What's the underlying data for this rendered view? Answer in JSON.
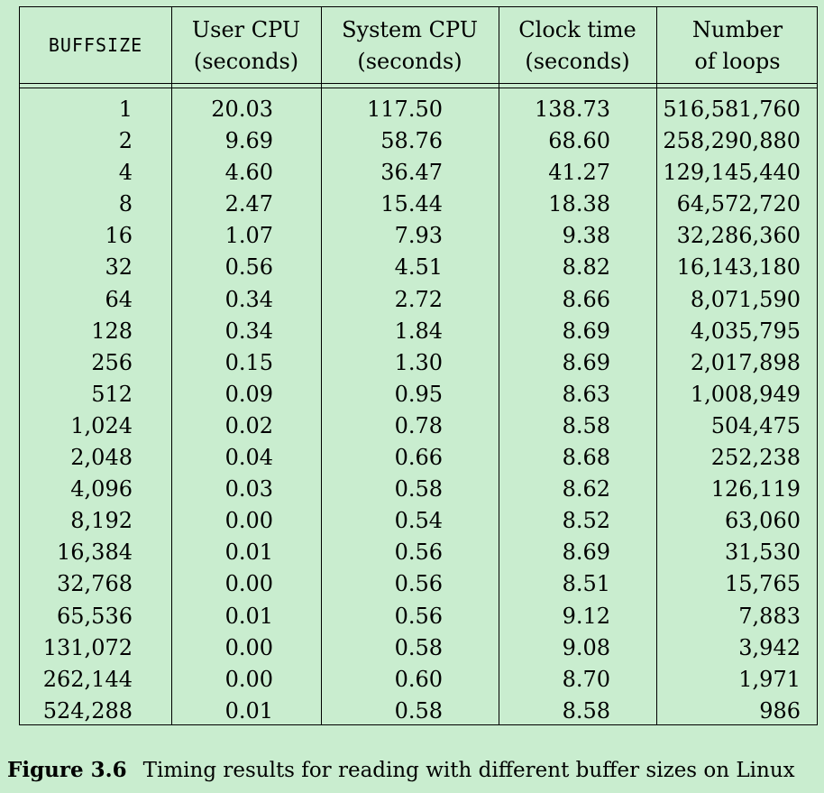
{
  "table": {
    "headers": [
      {
        "line1": "BUFFSIZE",
        "line2": ""
      },
      {
        "line1": "User CPU",
        "line2": "(seconds)"
      },
      {
        "line1": "System CPU",
        "line2": "(seconds)"
      },
      {
        "line1": "Clock time",
        "line2": "(seconds)"
      },
      {
        "line1": "Number",
        "line2": "of loops"
      }
    ],
    "rows": [
      [
        "1",
        "20.03",
        "117.50",
        "138.73",
        "516,581,760"
      ],
      [
        "2",
        "9.69",
        "58.76",
        "68.60",
        "258,290,880"
      ],
      [
        "4",
        "4.60",
        "36.47",
        "41.27",
        "129,145,440"
      ],
      [
        "8",
        "2.47",
        "15.44",
        "18.38",
        "64,572,720"
      ],
      [
        "16",
        "1.07",
        "7.93",
        "9.38",
        "32,286,360"
      ],
      [
        "32",
        "0.56",
        "4.51",
        "8.82",
        "16,143,180"
      ],
      [
        "64",
        "0.34",
        "2.72",
        "8.66",
        "8,071,590"
      ],
      [
        "128",
        "0.34",
        "1.84",
        "8.69",
        "4,035,795"
      ],
      [
        "256",
        "0.15",
        "1.30",
        "8.69",
        "2,017,898"
      ],
      [
        "512",
        "0.09",
        "0.95",
        "8.63",
        "1,008,949"
      ],
      [
        "1,024",
        "0.02",
        "0.78",
        "8.58",
        "504,475"
      ],
      [
        "2,048",
        "0.04",
        "0.66",
        "8.68",
        "252,238"
      ],
      [
        "4,096",
        "0.03",
        "0.58",
        "8.62",
        "126,119"
      ],
      [
        "8,192",
        "0.00",
        "0.54",
        "8.52",
        "63,060"
      ],
      [
        "16,384",
        "0.01",
        "0.56",
        "8.69",
        "31,530"
      ],
      [
        "32,768",
        "0.00",
        "0.56",
        "8.51",
        "15,765"
      ],
      [
        "65,536",
        "0.01",
        "0.56",
        "9.12",
        "7,883"
      ],
      [
        "131,072",
        "0.00",
        "0.58",
        "9.08",
        "3,942"
      ],
      [
        "262,144",
        "0.00",
        "0.60",
        "8.70",
        "1,971"
      ],
      [
        "524,288",
        "0.01",
        "0.58",
        "8.58",
        "986"
      ]
    ]
  },
  "caption": {
    "label": "Figure 3.6",
    "text": "Timing results for reading with different buffer sizes on Linux"
  },
  "colors": {
    "background": "#c9edcf",
    "ink": "#000000"
  }
}
